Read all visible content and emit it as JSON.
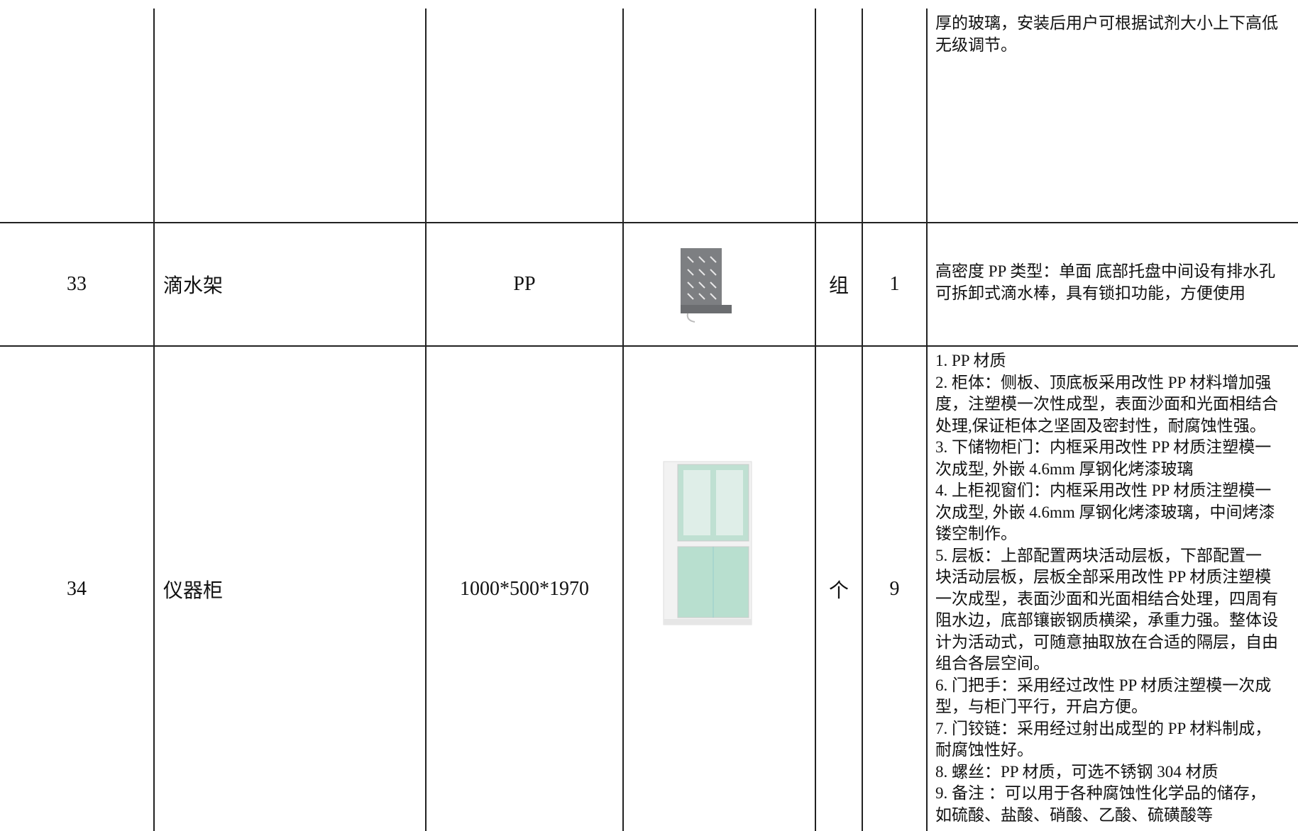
{
  "rows": [
    {
      "description": [
        "厚的玻璃，安装后用户可根据试剂大小上下高低",
        "无级调节。"
      ]
    },
    {
      "no": "33",
      "name": "滴水架",
      "spec": "PP",
      "unit": "组",
      "qty": "1",
      "description": [
        "高密度 PP 类型：单面 底部托盘中间设有排水孔",
        "可拆卸式滴水棒，具有锁扣功能，方便使用"
      ]
    },
    {
      "no": "34",
      "name": "仪器柜",
      "spec": "1000*500*1970",
      "unit": "个",
      "qty": "9",
      "description": [
        "1. PP 材质",
        "2. 柜体：侧板、顶底板采用改性 PP 材料增加强",
        "度，注塑模一次性成型，表面沙面和光面相结合",
        "处理,保证柜体之坚固及密封性，耐腐蚀性强。",
        "3. 下储物柜门：内框采用改性 PP 材质注塑模一",
        "次成型, 外嵌 4.6mm 厚钢化烤漆玻璃",
        "4. 上柜视窗们：内框采用改性 PP 材质注塑模一",
        "次成型, 外嵌 4.6mm 厚钢化烤漆玻璃，中间烤漆",
        "镂空制作。",
        "5. 层板：上部配置两块活动层板，下部配置一",
        "块活动层板，层板全部采用改性 PP 材质注塑模",
        "一次成型，表面沙面和光面相结合处理，四周有",
        "阻水边，底部镶嵌钢质横梁，承重力强。整体设",
        "计为活动式，可随意抽取放在合适的隔层，自由",
        "组合各层空间。",
        "6. 门把手：采用经过改性 PP 材质注塑模一次成",
        "型，与柜门平行，开启方便。",
        "7. 门铰链：采用经过射出成型的 PP 材料制成，",
        "耐腐蚀性好。",
        "8. 螺丝：PP 材质，可选不锈钢 304 材质",
        "9. 备注 ：可以用于各种腐蚀性化学品的储存，",
        "如硫酸、盐酸、硝酸、乙酸、硫磺酸等"
      ]
    }
  ]
}
